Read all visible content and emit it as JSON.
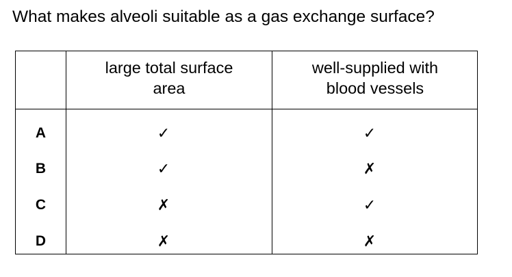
{
  "question": "What makes alveoli suitable as a gas exchange surface?",
  "table": {
    "headers": [
      "large total surface area",
      "well-supplied with blood vessels"
    ],
    "rows": [
      {
        "label": "A",
        "surface_area": "✓",
        "blood_vessels": "✓"
      },
      {
        "label": "B",
        "surface_area": "✓",
        "blood_vessels": "✗"
      },
      {
        "label": "C",
        "surface_area": "✗",
        "blood_vessels": "✓"
      },
      {
        "label": "D",
        "surface_area": "✗",
        "blood_vessels": "✗"
      }
    ]
  }
}
